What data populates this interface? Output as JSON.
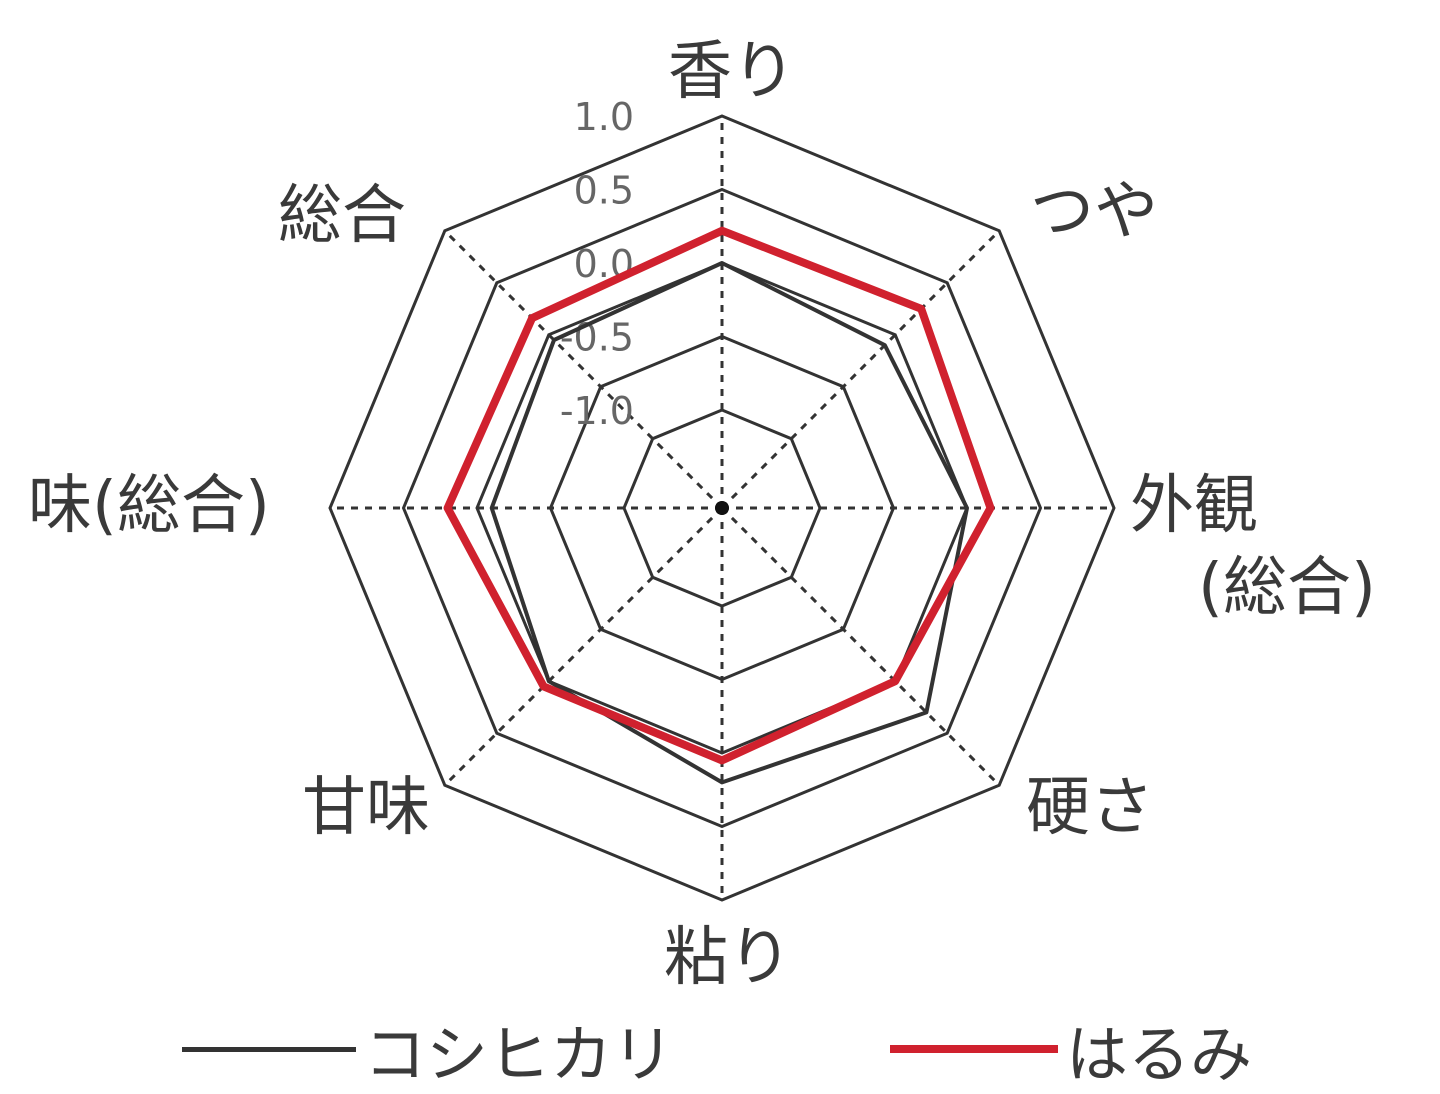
{
  "chart_data": {
    "type": "radar",
    "axes": [
      "香り",
      "つや",
      "外観(総合)",
      "硬さ",
      "粘り",
      "甘味",
      "味(総合)",
      "総合"
    ],
    "axis_labels": {
      "aroma": "香り",
      "gloss": "つや",
      "appearance_line1": "外観",
      "appearance_line2": "(総合)",
      "hardness": "硬さ",
      "stickiness": "粘り",
      "sweetness": "甘味",
      "taste": "味(総合)",
      "overall": "総合"
    },
    "rlim": [
      -1.0,
      1.0
    ],
    "ticks": [
      "1.0",
      "0.5",
      "0.0",
      "-0.5",
      "-1.0"
    ],
    "series": [
      {
        "name": "コシヒカリ",
        "color": "#333333",
        "values": [
          0.0,
          -0.1,
          0.0,
          0.3,
          0.2,
          0.0,
          -0.1,
          -0.05
        ]
      },
      {
        "name": "はるみ",
        "color": "#d0212e",
        "values": [
          0.22,
          0.25,
          0.16,
          0.0,
          0.05,
          0.05,
          0.2,
          0.16
        ]
      }
    ],
    "grid": true,
    "legend_position": "bottom"
  }
}
